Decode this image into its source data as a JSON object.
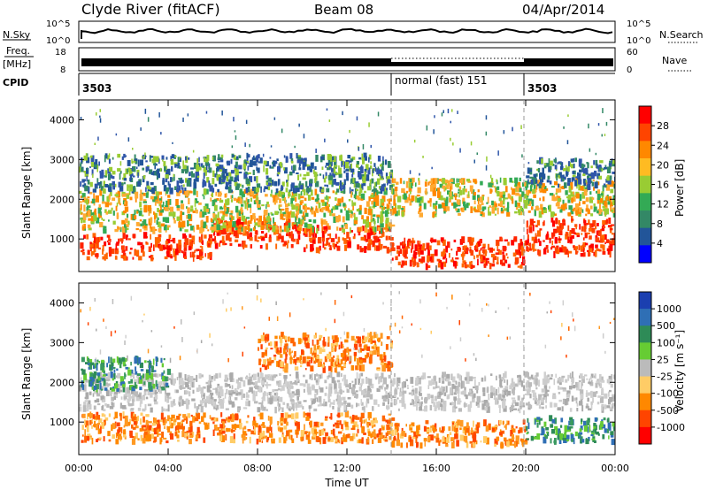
{
  "header": {
    "station": "Clyde River (fitACF)",
    "beam": "Beam 08",
    "date": "04/Apr/2014"
  },
  "top_panels": {
    "nsky_label": "N.Sky",
    "nsky_ticks": [
      "10^5",
      "10^0"
    ],
    "nsearch_label": "N.Search",
    "freq_label": "Freq.",
    "freq_unit": "[MHz]",
    "freq_ticks": [
      "18",
      "8"
    ],
    "nave_label": "Nave",
    "nave_ticks": [
      "60",
      "0"
    ],
    "cpid_label": "CPID",
    "cpid_segments": [
      {
        "label": "3503",
        "start": 0,
        "end": 14
      },
      {
        "label": "normal (fast) 151",
        "start": 14,
        "end": 20
      },
      {
        "label": "3503",
        "start": 20,
        "end": 24
      }
    ]
  },
  "chart_data": [
    {
      "type": "heatmap",
      "title": "",
      "xlabel": "",
      "ylabel": "Slant Range [km]",
      "xlim": [
        0,
        24
      ],
      "ylim": [
        180,
        4500
      ],
      "yticks": [
        1000,
        2000,
        3000,
        4000
      ],
      "colorbar": {
        "label": "Power [dB]",
        "ticks": [
          "28",
          "24",
          "20",
          "16",
          "12",
          "8",
          "4"
        ],
        "colors": [
          "#ff0000",
          "#ff4400",
          "#ff8800",
          "#ffbb22",
          "#99cc33",
          "#33aa55",
          "#338866",
          "#225599",
          "#0000ff"
        ]
      },
      "bands": [
        {
          "x0": 0,
          "x1": 6,
          "y0": 500,
          "y1": 1100,
          "level": "high"
        },
        {
          "x0": 6,
          "x1": 10,
          "y0": 800,
          "y1": 1500,
          "level": "high"
        },
        {
          "x0": 10,
          "x1": 14,
          "y0": 700,
          "y1": 1300,
          "level": "high"
        },
        {
          "x0": 14,
          "x1": 20,
          "y0": 300,
          "y1": 1000,
          "level": "high"
        },
        {
          "x0": 20,
          "x1": 24,
          "y0": 600,
          "y1": 1500,
          "level": "high"
        },
        {
          "x0": 0,
          "x1": 14,
          "y0": 1200,
          "y1": 2200,
          "level": "mid"
        },
        {
          "x0": 14,
          "x1": 24,
          "y0": 1600,
          "y1": 2500,
          "level": "mid"
        },
        {
          "x0": 0,
          "x1": 14,
          "y0": 2200,
          "y1": 3100,
          "level": "low"
        },
        {
          "x0": 20,
          "x1": 24,
          "y0": 2300,
          "y1": 3000,
          "level": "low"
        }
      ]
    },
    {
      "type": "heatmap",
      "title": "",
      "xlabel": "Time UT",
      "ylabel": "Slant Range [km]",
      "xlim": [
        0,
        24
      ],
      "ylim": [
        180,
        4500
      ],
      "yticks": [
        1000,
        2000,
        3000,
        4000
      ],
      "xticks": [
        "00:00",
        "04:00",
        "08:00",
        "12:00",
        "16:00",
        "20:00",
        "00:00"
      ],
      "colorbar": {
        "label": "Velocity [m s⁻¹]",
        "ticks": [
          "1000",
          "500",
          "100",
          "25",
          "-25",
          "-100",
          "-500",
          "-1000"
        ],
        "colors": [
          "#1b3fb0",
          "#2f6fb5",
          "#2e8b57",
          "#66cc33",
          "#bbbbbb",
          "#ffcc66",
          "#ff8800",
          "#ff4400",
          "#ff0000"
        ]
      },
      "bands": [
        {
          "x0": 0,
          "x1": 14,
          "y0": 500,
          "y1": 1200,
          "level": "neg"
        },
        {
          "x0": 14,
          "x1": 20,
          "y0": 400,
          "y1": 1000,
          "level": "neg"
        },
        {
          "x0": 20,
          "x1": 24,
          "y0": 500,
          "y1": 1100,
          "level": "pos"
        },
        {
          "x0": 0,
          "x1": 24,
          "y0": 1300,
          "y1": 2200,
          "level": "zero"
        },
        {
          "x0": 0,
          "x1": 4,
          "y0": 1800,
          "y1": 2600,
          "level": "pos"
        },
        {
          "x0": 8,
          "x1": 14,
          "y0": 2300,
          "y1": 3200,
          "level": "neg"
        }
      ]
    }
  ]
}
